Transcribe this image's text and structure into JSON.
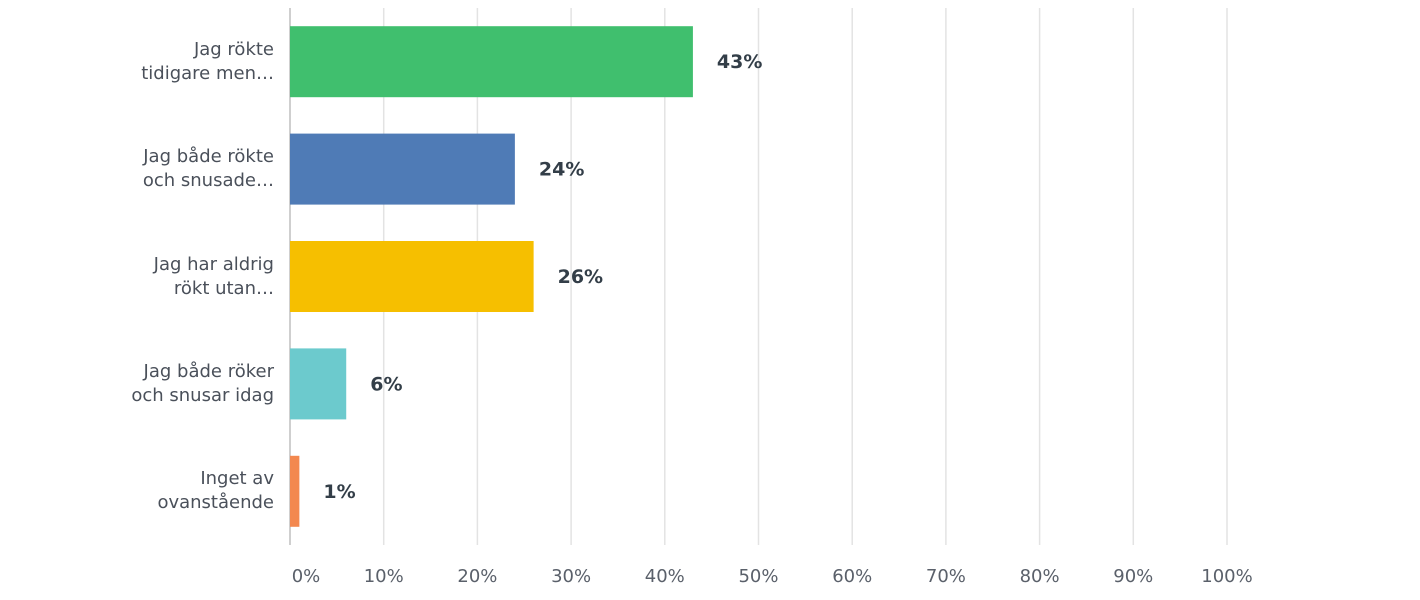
{
  "chart_data": {
    "type": "barh",
    "categories": [
      "Jag rökte\ntidigare men…",
      "Jag både rökte\noch snusade…",
      "Jag har aldrig\nrökt utan…",
      "Jag både röker\noch snusar idag",
      "Inget av\novanstående"
    ],
    "values": [
      43,
      24,
      26,
      6,
      1
    ],
    "value_labels": [
      "43%",
      "24%",
      "26%",
      "6%",
      "1%"
    ],
    "colors": [
      "#40bf6e",
      "#4f7bb6",
      "#f6bf00",
      "#6ccacd",
      "#f3884f"
    ],
    "xlim": [
      0,
      100
    ],
    "xticks": [
      {
        "value": 0,
        "label": "0%"
      },
      {
        "value": 10,
        "label": "10%"
      },
      {
        "value": 20,
        "label": "20%"
      },
      {
        "value": 30,
        "label": "30%"
      },
      {
        "value": 40,
        "label": "40%"
      },
      {
        "value": 50,
        "label": "50%"
      },
      {
        "value": 60,
        "label": "60%"
      },
      {
        "value": 70,
        "label": "70%"
      },
      {
        "value": 80,
        "label": "80%"
      },
      {
        "value": 90,
        "label": "90%"
      },
      {
        "value": 100,
        "label": "100%"
      }
    ],
    "grid": true
  }
}
